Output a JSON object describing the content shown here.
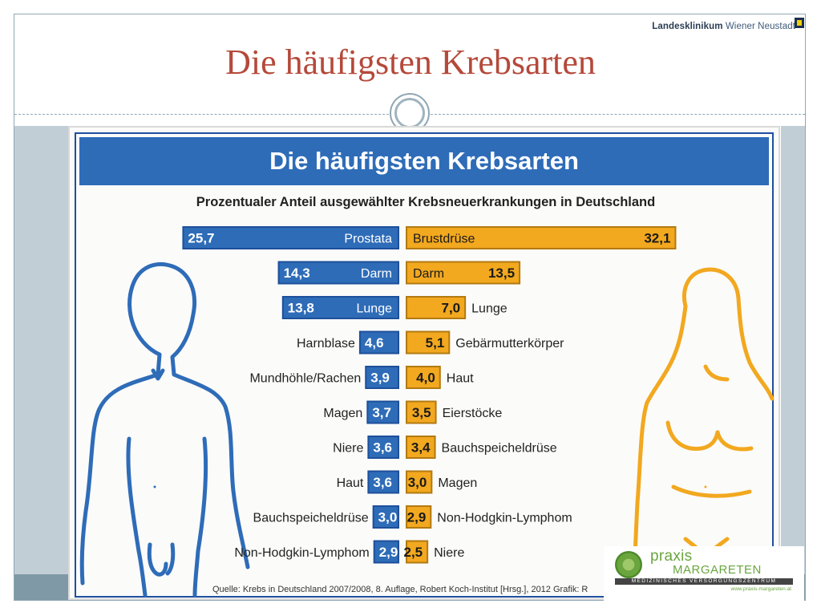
{
  "slide": {
    "title": "Die häufigsten Krebsarten",
    "clinic_name": "Landesklinikum",
    "clinic_city": "Wiener Neustadt"
  },
  "chart_data": {
    "type": "bar",
    "title": "Die häufigsten Krebsarten",
    "subtitle": "Prozentualer Anteil ausgewählter Krebsneuerkrankungen in Deutschland",
    "source": "Quelle: Krebs in Deutschland 2007/2008, 8. Auflage, Robert Koch-Institut [Hrsg.], 2012     Grafik: R",
    "colors": {
      "men": "#2e6cb8",
      "women": "#f2a81f",
      "men_outline": "#1d4f9a",
      "women_outline": "#b27a10"
    },
    "men": [
      {
        "label": "Prostata",
        "value": 25.7,
        "display": "25,7"
      },
      {
        "label": "Darm",
        "value": 14.3,
        "display": "14,3"
      },
      {
        "label": "Lunge",
        "value": 13.8,
        "display": "13,8"
      },
      {
        "label": "Harnblase",
        "value": 4.6,
        "display": "4,6"
      },
      {
        "label": "Mundhöhle/Rachen",
        "value": 3.9,
        "display": "3,9"
      },
      {
        "label": "Magen",
        "value": 3.7,
        "display": "3,7"
      },
      {
        "label": "Niere",
        "value": 3.6,
        "display": "3,6"
      },
      {
        "label": "Haut",
        "value": 3.6,
        "display": "3,6"
      },
      {
        "label": "Bauchspeicheldrüse",
        "value": 3.0,
        "display": "3,0"
      },
      {
        "label": "Non-Hodgkin-Lymphom",
        "value": 2.9,
        "display": "2,9"
      }
    ],
    "women": [
      {
        "label": "Brustdrüse",
        "value": 32.1,
        "display": "32,1"
      },
      {
        "label": "Darm",
        "value": 13.5,
        "display": "13,5"
      },
      {
        "label": "Lunge",
        "value": 7.0,
        "display": "7,0"
      },
      {
        "label": "Gebärmutterkörper",
        "value": 5.1,
        "display": "5,1"
      },
      {
        "label": "Haut",
        "value": 4.0,
        "display": "4,0"
      },
      {
        "label": "Eierstöcke",
        "value": 3.5,
        "display": "3,5"
      },
      {
        "label": "Bauchspeicheldrüse",
        "value": 3.4,
        "display": "3,4"
      },
      {
        "label": "Magen",
        "value": 3.0,
        "display": "3,0"
      },
      {
        "label": "Non-Hodgkin-Lymphom",
        "value": 2.9,
        "display": "2,9"
      },
      {
        "label": "Niere",
        "value": 2.5,
        "display": "2,5"
      }
    ]
  },
  "logo": {
    "praxis": "praxis",
    "name": "MARGARETEN",
    "tagline": "MEDIZINISCHES VERSORGUNGSZENTRUM",
    "url": "www.praxis-margareten.at"
  }
}
